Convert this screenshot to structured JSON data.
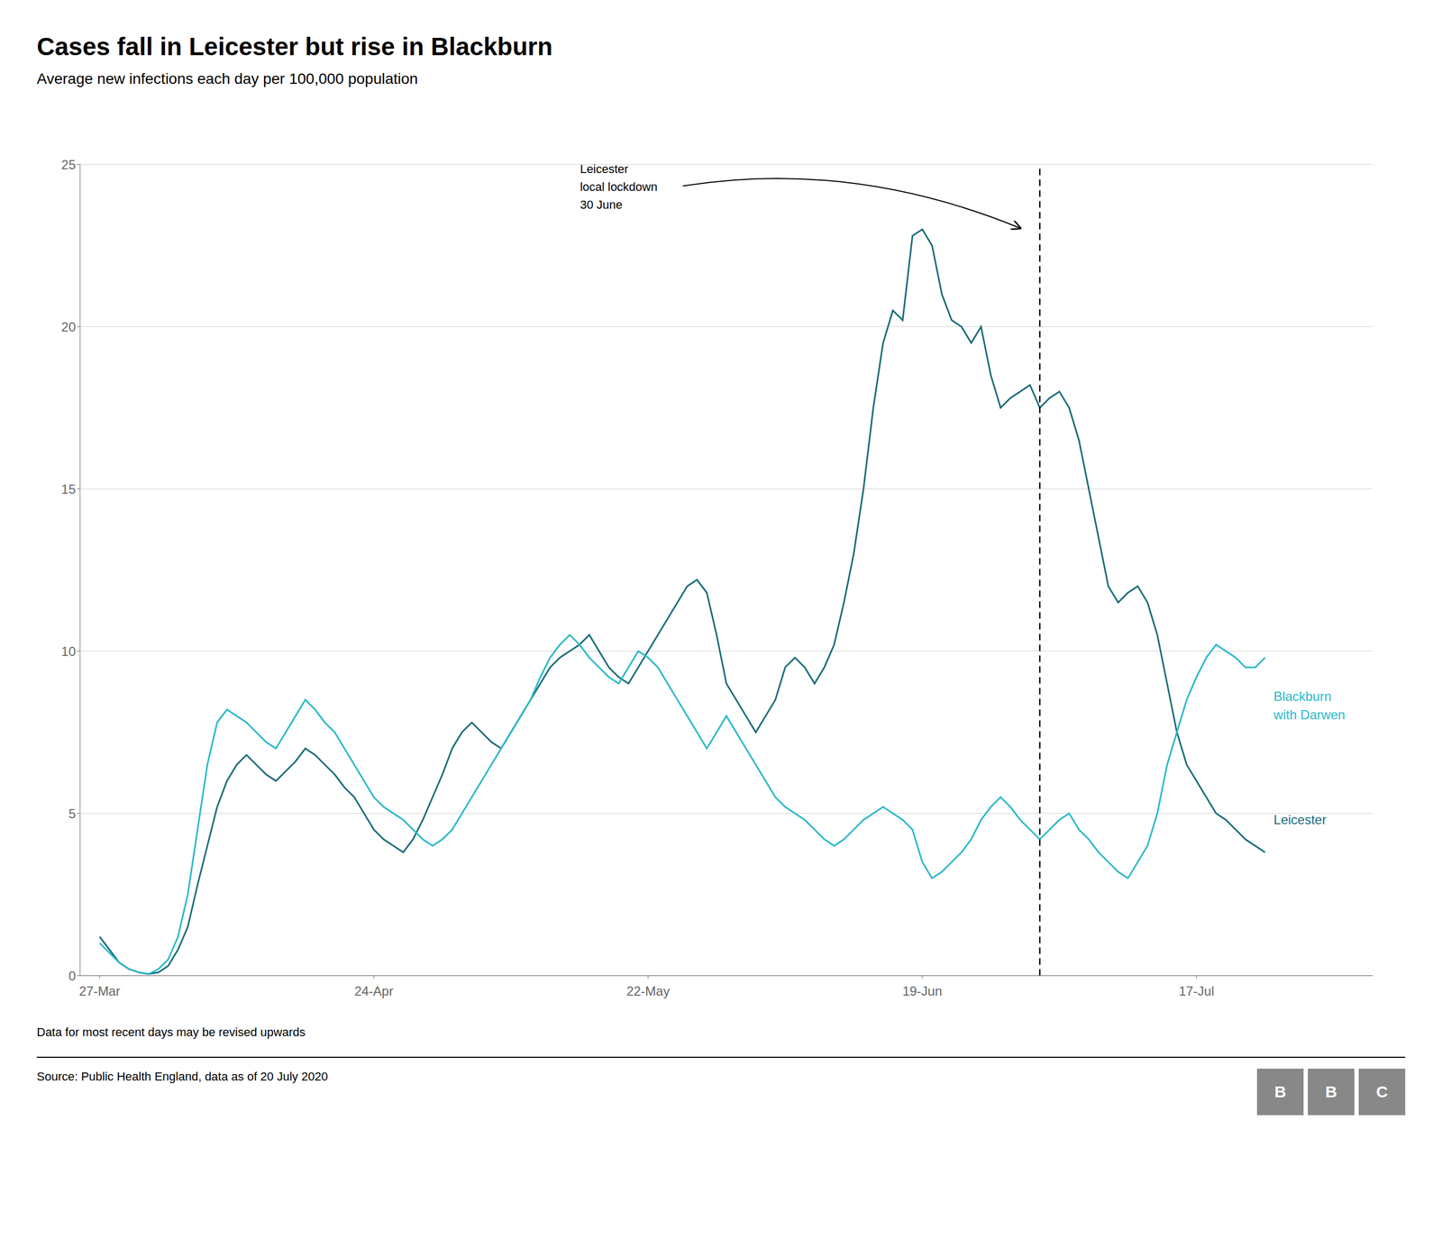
{
  "chart_data": {
    "type": "line",
    "title": "Cases fall in Leicester but rise in Blackburn",
    "subtitle": "Average new infections each day per 100,000 population",
    "footer_note": "Data for most recent days may be revised upwards",
    "source": "Source: Public Health England, data as of 20 July 2020",
    "logo": "BBC",
    "x": [
      0,
      1,
      2,
      3,
      4,
      5,
      6,
      7,
      8,
      9,
      10,
      11,
      12,
      13,
      14,
      15,
      16,
      17,
      18,
      19,
      20,
      21,
      22,
      23,
      24,
      25,
      26,
      27,
      28,
      29,
      30,
      31,
      32,
      33,
      34,
      35,
      36,
      37,
      38,
      39,
      40,
      41,
      42,
      43,
      44,
      45,
      46,
      47,
      48,
      49,
      50,
      51,
      52,
      53,
      54,
      55,
      56,
      57,
      58,
      59,
      60,
      61,
      62,
      63,
      64,
      65,
      66,
      67,
      68,
      69,
      70,
      71,
      72,
      73,
      74,
      75,
      76,
      77,
      78,
      79,
      80,
      81,
      82,
      83,
      84,
      85,
      86,
      87,
      88,
      89,
      90,
      91,
      92,
      93,
      94,
      95,
      96,
      97,
      98,
      99,
      100,
      101,
      102,
      103,
      104,
      105,
      106,
      107,
      108,
      109,
      110,
      111,
      112,
      113,
      114,
      115,
      116,
      117,
      118,
      119
    ],
    "series": [
      {
        "name": "Leicester",
        "color": "#1a6b7a",
        "values": [
          1.2,
          0.8,
          0.4,
          0.2,
          0.1,
          0.05,
          0.1,
          0.3,
          0.8,
          1.5,
          2.8,
          4.0,
          5.2,
          6.0,
          6.5,
          6.8,
          6.5,
          6.2,
          6.0,
          6.3,
          6.6,
          7.0,
          6.8,
          6.5,
          6.2,
          5.8,
          5.5,
          5.0,
          4.5,
          4.2,
          4.0,
          3.8,
          4.2,
          4.8,
          5.5,
          6.2,
          7.0,
          7.5,
          7.8,
          7.5,
          7.2,
          7.0,
          7.5,
          8.0,
          8.5,
          9.0,
          9.5,
          9.8,
          10.0,
          10.2,
          10.5,
          10.0,
          9.5,
          9.2,
          9.0,
          9.5,
          10.0,
          10.5,
          11.0,
          11.5,
          12.0,
          12.2,
          11.8,
          10.5,
          9.0,
          8.5,
          8.0,
          7.5,
          8.0,
          8.5,
          9.5,
          9.8,
          9.5,
          9.0,
          9.5,
          10.2,
          11.5,
          13.0,
          15.0,
          17.5,
          19.5,
          20.5,
          20.2,
          22.8,
          23.0,
          22.5,
          21.0,
          20.2,
          20.0,
          19.5,
          20.0,
          18.5,
          17.5,
          17.8,
          18.0,
          18.2,
          17.5,
          17.8,
          18.0,
          17.5,
          16.5,
          15.0,
          13.5,
          12.0,
          11.5,
          11.8,
          12.0,
          11.5,
          10.5,
          9.0,
          7.5,
          6.5,
          6.0,
          5.5,
          5.0,
          4.8,
          4.5,
          4.2,
          4.0,
          3.8
        ]
      },
      {
        "name": "Blackburn\nwith Darwen",
        "color": "#29b8c8",
        "values": [
          1.0,
          0.7,
          0.4,
          0.2,
          0.1,
          0.05,
          0.2,
          0.5,
          1.2,
          2.5,
          4.5,
          6.5,
          7.8,
          8.2,
          8.0,
          7.8,
          7.5,
          7.2,
          7.0,
          7.5,
          8.0,
          8.5,
          8.2,
          7.8,
          7.5,
          7.0,
          6.5,
          6.0,
          5.5,
          5.2,
          5.0,
          4.8,
          4.5,
          4.2,
          4.0,
          4.2,
          4.5,
          5.0,
          5.5,
          6.0,
          6.5,
          7.0,
          7.5,
          8.0,
          8.5,
          9.2,
          9.8,
          10.2,
          10.5,
          10.2,
          9.8,
          9.5,
          9.2,
          9.0,
          9.5,
          10.0,
          9.8,
          9.5,
          9.0,
          8.5,
          8.0,
          7.5,
          7.0,
          7.5,
          8.0,
          7.5,
          7.0,
          6.5,
          6.0,
          5.5,
          5.2,
          5.0,
          4.8,
          4.5,
          4.2,
          4.0,
          4.2,
          4.5,
          4.8,
          5.0,
          5.2,
          5.0,
          4.8,
          4.5,
          3.5,
          3.0,
          3.2,
          3.5,
          3.8,
          4.2,
          4.8,
          5.2,
          5.5,
          5.2,
          4.8,
          4.5,
          4.2,
          4.5,
          4.8,
          5.0,
          4.5,
          4.2,
          3.8,
          3.5,
          3.2,
          3.0,
          3.5,
          4.0,
          5.0,
          6.5,
          7.5,
          8.5,
          9.2,
          9.8,
          10.2,
          10.0,
          9.8,
          9.5,
          9.5,
          9.8
        ]
      }
    ],
    "xlim": [
      -2,
      130
    ],
    "xticks": [
      {
        "value": 0,
        "label": "27-Mar"
      },
      {
        "value": 28,
        "label": "24-Apr"
      },
      {
        "value": 56,
        "label": "22-May"
      },
      {
        "value": 84,
        "label": "19-Jun"
      },
      {
        "value": 112,
        "label": "17-Jul"
      }
    ],
    "ylim": [
      0,
      25
    ],
    "yticks": [
      0,
      5,
      10,
      15,
      20,
      25
    ],
    "grid": "y",
    "annotation": {
      "text": "Leicester\nlocal lockdown\n30 June",
      "x": 96,
      "line_style": "dashed"
    }
  }
}
